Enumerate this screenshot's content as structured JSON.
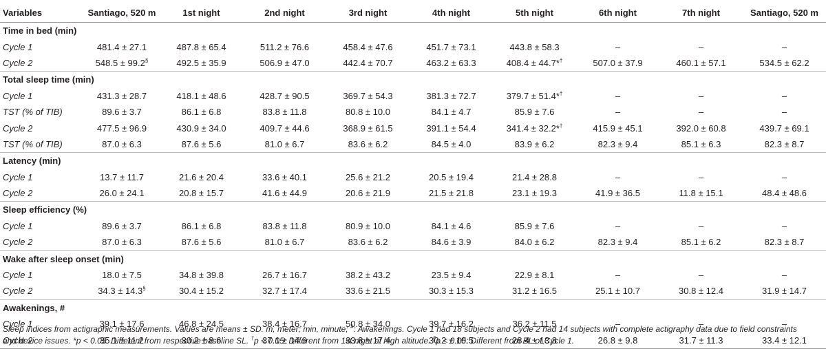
{
  "headers": [
    "Variables",
    "Santiago, 520 m",
    "1st night",
    "2nd night",
    "3rd night",
    "4th night",
    "5th night",
    "6th night",
    "7th night",
    "Santiago, 520 m"
  ],
  "sections": [
    {
      "title": "Time in bed (min)",
      "rows": [
        {
          "label": "Cycle 1",
          "cells": [
            {
              "v": "481.4 ± 27.1"
            },
            {
              "v": "487.8 ± 65.4"
            },
            {
              "v": "511.2 ± 76.6"
            },
            {
              "v": "458.4 ± 47.6"
            },
            {
              "v": "451.7 ± 73.1"
            },
            {
              "v": "443.8 ± 58.3"
            },
            {
              "v": "–"
            },
            {
              "v": "–"
            },
            {
              "v": "–"
            }
          ]
        },
        {
          "label": "Cycle 2",
          "cells": [
            {
              "v": "548.5 ± 99.2",
              "sup": "§"
            },
            {
              "v": "492.5 ± 35.9"
            },
            {
              "v": "506.9 ± 47.0"
            },
            {
              "v": "442.4 ± 70.7"
            },
            {
              "v": "463.2 ± 63.3"
            },
            {
              "v": "408.4 ± 44.7*",
              "sup": "†"
            },
            {
              "v": "507.0 ± 37.9"
            },
            {
              "v": "460.1 ± 57.1"
            },
            {
              "v": "534.5 ± 62.2"
            }
          ]
        }
      ]
    },
    {
      "title": "Total sleep time (min)",
      "rows": [
        {
          "label": "Cycle 1",
          "cells": [
            {
              "v": "431.3 ± 28.7"
            },
            {
              "v": "418.1 ± 48.6"
            },
            {
              "v": "428.7 ± 90.5"
            },
            {
              "v": "369.7 ± 54.3"
            },
            {
              "v": "381.3 ± 72.7"
            },
            {
              "v": "379.7 ± 51.4*",
              "sup": "†"
            },
            {
              "v": "–"
            },
            {
              "v": "–"
            },
            {
              "v": "–"
            }
          ]
        },
        {
          "label": "TST (% of TIB)",
          "cells": [
            {
              "v": "89.6 ± 3.7"
            },
            {
              "v": "86.1 ± 6.8"
            },
            {
              "v": "83.8 ± 11.8"
            },
            {
              "v": "80.8 ± 10.0"
            },
            {
              "v": "84.1 ± 4.7"
            },
            {
              "v": "85.9 ± 7.6"
            },
            {
              "v": "–"
            },
            {
              "v": "–"
            },
            {
              "v": "–"
            }
          ]
        },
        {
          "label": "Cycle 2",
          "cells": [
            {
              "v": "477.5 ± 96.9"
            },
            {
              "v": "430.9 ± 34.0"
            },
            {
              "v": "409.7 ± 44.6"
            },
            {
              "v": "368.9 ± 61.5"
            },
            {
              "v": "391.1 ± 54.4"
            },
            {
              "v": "341.4 ± 32.2*",
              "sup": "†"
            },
            {
              "v": "415.9 ± 45.1"
            },
            {
              "v": "392.0 ± 60.8"
            },
            {
              "v": "439.7 ± 69.1"
            }
          ]
        },
        {
          "label": "TST (% of TIB)",
          "cells": [
            {
              "v": "87.0 ± 6.3"
            },
            {
              "v": "87.6 ± 5.6"
            },
            {
              "v": "81.0 ± 6.7"
            },
            {
              "v": "83.6 ± 6.2"
            },
            {
              "v": "84.5 ± 4.0"
            },
            {
              "v": "83.9 ± 6.2"
            },
            {
              "v": "82.3 ± 9.4"
            },
            {
              "v": "85.1 ± 6.3"
            },
            {
              "v": "82.3 ± 8.7"
            }
          ]
        }
      ]
    },
    {
      "title": "Latency (min)",
      "rows": [
        {
          "label": "Cycle 1",
          "cells": [
            {
              "v": "13.7 ± 11.7"
            },
            {
              "v": "21.6 ± 20.4"
            },
            {
              "v": "33.6 ± 40.1"
            },
            {
              "v": "25.6 ± 21.2"
            },
            {
              "v": "20.5 ± 19.4"
            },
            {
              "v": "21.4 ± 28.8"
            },
            {
              "v": "–"
            },
            {
              "v": "–"
            },
            {
              "v": "–"
            }
          ]
        },
        {
          "label": "Cycle 2",
          "cells": [
            {
              "v": "26.0 ± 24.1"
            },
            {
              "v": "20.8 ± 15.7"
            },
            {
              "v": "41.6 ± 44.9"
            },
            {
              "v": "20.6 ± 21.9"
            },
            {
              "v": "21.5 ± 21.8"
            },
            {
              "v": "23.1 ± 19.3"
            },
            {
              "v": "41.9 ± 36.5"
            },
            {
              "v": "11.8 ± 15.1"
            },
            {
              "v": "48.4 ± 48.6"
            }
          ]
        }
      ]
    },
    {
      "title": "Sleep efficiency (%)",
      "rows": [
        {
          "label": "Cycle 1",
          "cells": [
            {
              "v": "89.6 ± 3.7"
            },
            {
              "v": "86.1 ± 6.8"
            },
            {
              "v": "83.8 ± 11.8"
            },
            {
              "v": "80.9 ± 10.0"
            },
            {
              "v": "84.1 ± 4.6"
            },
            {
              "v": "85.9 ± 7.6"
            },
            {
              "v": "–"
            },
            {
              "v": "–"
            },
            {
              "v": "–"
            }
          ]
        },
        {
          "label": "Cycle 2",
          "cells": [
            {
              "v": "87.0 ± 6.3"
            },
            {
              "v": "87.6 ± 5.6"
            },
            {
              "v": "81.0 ± 6.7"
            },
            {
              "v": "83.6 ± 6.2"
            },
            {
              "v": "84.6 ± 3.9"
            },
            {
              "v": "84.0 ± 6.2"
            },
            {
              "v": "82.3 ± 9.4"
            },
            {
              "v": "85.1 ± 6.2"
            },
            {
              "v": "82.3 ± 8.7"
            }
          ]
        }
      ]
    },
    {
      "title": "Wake after sleep onset (min)",
      "rows": [
        {
          "label": "Cycle 1",
          "cells": [
            {
              "v": "18.0 ± 7.5"
            },
            {
              "v": "34.8 ± 39.8"
            },
            {
              "v": "26.7 ± 16.7"
            },
            {
              "v": "38.2 ± 43.2"
            },
            {
              "v": "23.5 ± 9.4"
            },
            {
              "v": "22.9 ± 8.1"
            },
            {
              "v": "–"
            },
            {
              "v": "–"
            },
            {
              "v": "–"
            }
          ]
        },
        {
          "label": "Cycle 2",
          "cells": [
            {
              "v": "34.3 ± 14.3",
              "sup": "§"
            },
            {
              "v": "30.4 ± 15.2"
            },
            {
              "v": "32.7 ± 17.4"
            },
            {
              "v": "33.6 ± 21.5"
            },
            {
              "v": "30.3 ± 15.3"
            },
            {
              "v": "31.2 ± 16.5"
            },
            {
              "v": "25.1 ± 10.7"
            },
            {
              "v": "30.8 ± 12.4"
            },
            {
              "v": "31.9 ± 14.7"
            }
          ]
        }
      ]
    },
    {
      "title": "Awakenings, #",
      "rows": [
        {
          "label": "Cycle 1",
          "cells": [
            {
              "v": "39.1 ± 17.6"
            },
            {
              "v": "46.8 ± 24.5"
            },
            {
              "v": "38.4 ± 16.7"
            },
            {
              "v": "50.8 ± 34.0"
            },
            {
              "v": "39.7 ± 16.2"
            },
            {
              "v": "36.2 ± 11.5"
            },
            {
              "v": "–"
            },
            {
              "v": "–"
            },
            {
              "v": "–"
            }
          ]
        },
        {
          "label": "Cycle 2",
          "cells": [
            {
              "v": "35.1 ± 11.2"
            },
            {
              "v": "30.2 ± 8.6"
            },
            {
              "v": "37.1 ± 14.9"
            },
            {
              "v": "33.8 ± 17.4"
            },
            {
              "v": "30.2 ± 10.5"
            },
            {
              "v": "28.4 ± 13.8"
            },
            {
              "v": "26.8 ± 9.8"
            },
            {
              "v": "31.7 ± 11.3"
            },
            {
              "v": "33.4 ± 12.1"
            }
          ]
        }
      ]
    }
  ],
  "footnote": {
    "line1_a": "Sleep indices from actigraphic measurements. Values are means ± SD. m, meter; min, minute; ",
    "line1_sup": "#",
    "line1_b": ": Awakenings. Cycle 1 had 18 subjects and Cycle 2 had 14 subjects with complete actigraphy data due to field constraints",
    "line2_a": "and device issues. *p < 0.05: Different from respective baseline SL. ",
    "line2_sup1": "†",
    "line2_b": "p < 0.05: Different from 1st night at high altitude. ",
    "line2_sup2": "§",
    "line2_c": "p < 0.05: Different from BL of Cycle 1."
  }
}
